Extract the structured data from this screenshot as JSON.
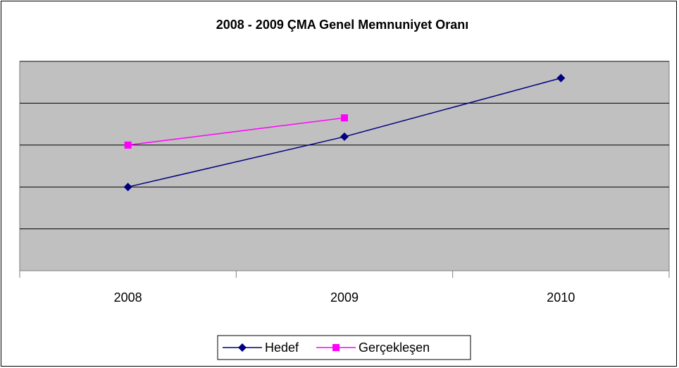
{
  "chart_data": {
    "type": "line",
    "title": "2008 - 2009 ÇMA Genel Memnuniyet Oranı",
    "categories": [
      "2008",
      "2009",
      "2010"
    ],
    "series": [
      {
        "name": "Hedef",
        "color": "#000080",
        "marker": "diamond",
        "values": [
          2.0,
          3.2,
          4.6
        ]
      },
      {
        "name": "Gerçekleşen",
        "color": "#ff00ff",
        "marker": "square",
        "values": [
          3.0,
          3.65,
          null
        ]
      }
    ],
    "ylim": [
      0,
      5
    ],
    "yticks": [
      0,
      1,
      2,
      3,
      4,
      5
    ],
    "grid": true,
    "legend": "bottom"
  }
}
